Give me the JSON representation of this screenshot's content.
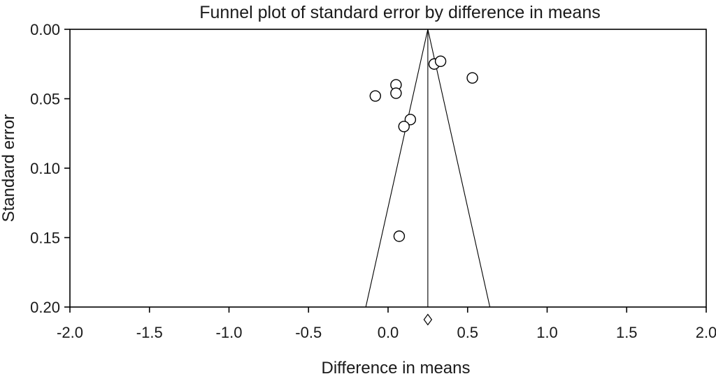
{
  "chart_data": {
    "type": "scatter",
    "subtype": "funnel-plot",
    "title": "Funnel plot of standard error by difference in means",
    "xlabel": "Difference in means",
    "ylabel": "Standard error",
    "xlim": [
      -2.0,
      2.0
    ],
    "ylim": [
      0.0,
      0.2
    ],
    "y_axis_inverted_downward": true,
    "grid": false,
    "legend": "none",
    "x_ticks": [
      -2.0,
      -1.5,
      -1.0,
      -0.5,
      0.0,
      0.5,
      1.0,
      1.5,
      2.0
    ],
    "x_tick_labels": [
      "-2.0",
      "-1.5",
      "-1.0",
      "-0.5",
      "0.0",
      "0.5",
      "1.0",
      "1.5",
      "2.0"
    ],
    "y_ticks": [
      0.0,
      0.05,
      0.1,
      0.15,
      0.2
    ],
    "y_tick_labels": [
      "0.00",
      "0.05",
      "0.10",
      "0.15",
      "0.20"
    ],
    "points": [
      {
        "x": 0.29,
        "y": 0.025
      },
      {
        "x": 0.33,
        "y": 0.023
      },
      {
        "x": 0.53,
        "y": 0.035
      },
      {
        "x": 0.05,
        "y": 0.04
      },
      {
        "x": 0.05,
        "y": 0.046
      },
      {
        "x": -0.08,
        "y": 0.048
      },
      {
        "x": 0.14,
        "y": 0.065
      },
      {
        "x": 0.1,
        "y": 0.07
      },
      {
        "x": 0.07,
        "y": 0.149
      }
    ],
    "funnel": {
      "center": 0.25,
      "half_width_at_bottom": 0.39
    },
    "pooled_estimate_marker": {
      "x": 0.25
    },
    "colors": {
      "line": "#000000",
      "marker_fill": "#ffffff",
      "marker_stroke": "#000000",
      "text": "#1a1a1a",
      "background": "#ffffff"
    }
  }
}
